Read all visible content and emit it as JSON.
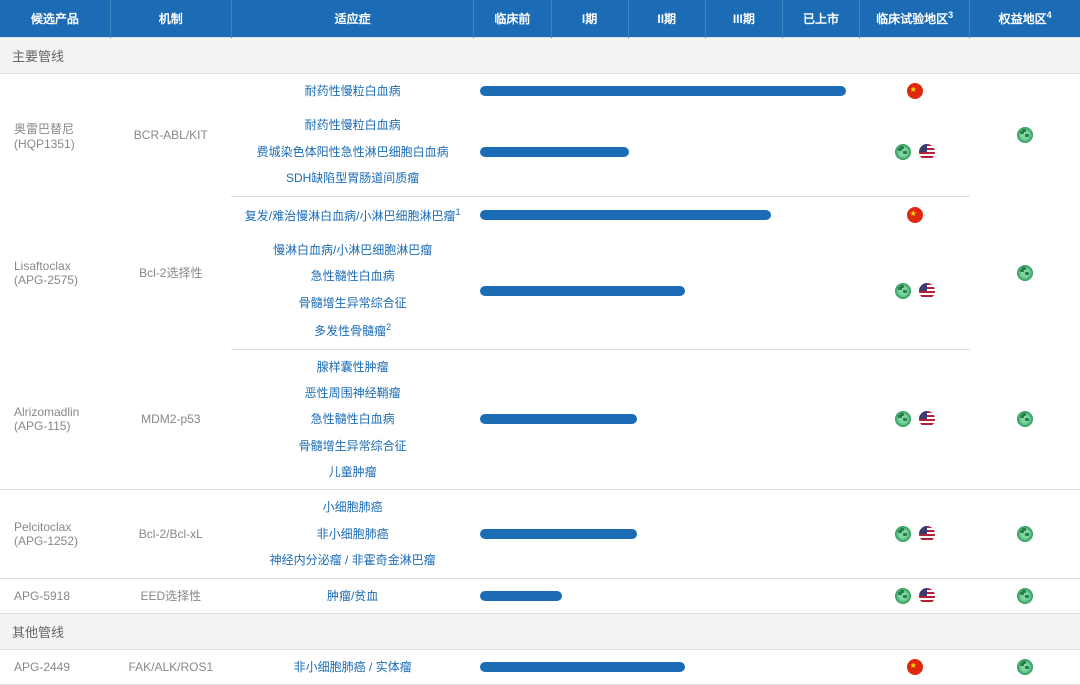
{
  "colors": {
    "header_bg": "#1b6cb5",
    "header_text": "#ffffff",
    "section_bg": "#f3f3f3",
    "section_text": "#666666",
    "indication_text": "#1b6cb5",
    "name_text": "#888888",
    "bar_color": "#1b6cb5",
    "row_border": "#eeeeee"
  },
  "headers": {
    "candidate": "候选产品",
    "mechanism": "机制",
    "indication": "适应症",
    "preclinical": "临床前",
    "phase1": "I期",
    "phase2": "II期",
    "phase3": "III期",
    "marketed": "已上市",
    "trial_region": "临床试验地区",
    "trial_region_sup": "3",
    "rights_region": "权益地区",
    "rights_region_sup": "4"
  },
  "sections": {
    "main": "主要管线",
    "other": "其他管线"
  },
  "rows": [
    {
      "section": "main",
      "name_line1": "奥雷巴替尼",
      "name_line2": "(HQP1351)",
      "mechanism": "BCR-ABL/KIT",
      "sub": [
        {
          "indication": "耐药性慢粒白血病",
          "bar_pct": 98,
          "trial_flags": [
            "china"
          ]
        },
        {
          "indications": [
            "耐药性慢粒白血病",
            "费城染色体阳性急性淋巴细胞白血病",
            "SDH缺陷型胃肠道间质瘤"
          ],
          "bar_pct": 40,
          "trial_flags": [
            "globe",
            "usa"
          ]
        }
      ],
      "rights_flags": [
        "globe"
      ]
    },
    {
      "section": "main",
      "name_line1": "Lisaftoclax",
      "name_line2": "(APG-2575)",
      "mechanism": "Bcl-2选择性",
      "sub": [
        {
          "indication": "复发/难治慢淋白血病/小淋巴细胞淋巴瘤",
          "indication_sup": "1",
          "bar_pct": 78,
          "trial_flags": [
            "china"
          ]
        },
        {
          "indications": [
            "慢淋白血病/小淋巴细胞淋巴瘤",
            "急性髓性白血病",
            "骨髓增生异常综合征",
            "多发性骨髓瘤"
          ],
          "indications_sup": [
            null,
            null,
            null,
            "2"
          ],
          "bar_pct": 55,
          "trial_flags": [
            "globe",
            "usa"
          ]
        }
      ],
      "rights_flags": [
        "globe"
      ]
    },
    {
      "section": "main",
      "name_line1": "Alrizomadlin",
      "name_line2": "(APG-115)",
      "mechanism": "MDM2-p53",
      "sub": [
        {
          "indications": [
            "腺样囊性肿瘤",
            "恶性周围神经鞘瘤",
            "急性髓性白血病",
            "骨髓增生异常综合征",
            "儿童肿瘤"
          ],
          "bar_pct": 42,
          "trial_flags": [
            "globe",
            "usa"
          ]
        }
      ],
      "rights_flags": [
        "globe"
      ]
    },
    {
      "section": "main",
      "name_line1": "Pelcitoclax",
      "name_line2": "(APG-1252)",
      "mechanism": "Bcl-2/Bcl-xL",
      "sub": [
        {
          "indications": [
            "小细胞肺癌",
            "非小细胞肺癌",
            "神经内分泌瘤 / 非霍奇金淋巴瘤"
          ],
          "bar_pct": 42,
          "trial_flags": [
            "globe",
            "usa"
          ]
        }
      ],
      "rights_flags": [
        "globe"
      ]
    },
    {
      "section": "main",
      "name_line1": "APG-5918",
      "name_line2": "",
      "mechanism": "EED选择性",
      "sub": [
        {
          "indication": "肿瘤/贫血",
          "bar_pct": 22,
          "trial_flags": [
            "globe",
            "usa"
          ]
        }
      ],
      "rights_flags": [
        "globe"
      ]
    },
    {
      "section": "other",
      "name_line1": "APG-2449",
      "name_line2": "",
      "mechanism": "FAK/ALK/ROS1",
      "sub": [
        {
          "indication": "非小细胞肺癌 / 实体瘤",
          "bar_pct": 55,
          "trial_flags": [
            "china"
          ]
        }
      ],
      "rights_flags": [
        "globe"
      ]
    }
  ]
}
